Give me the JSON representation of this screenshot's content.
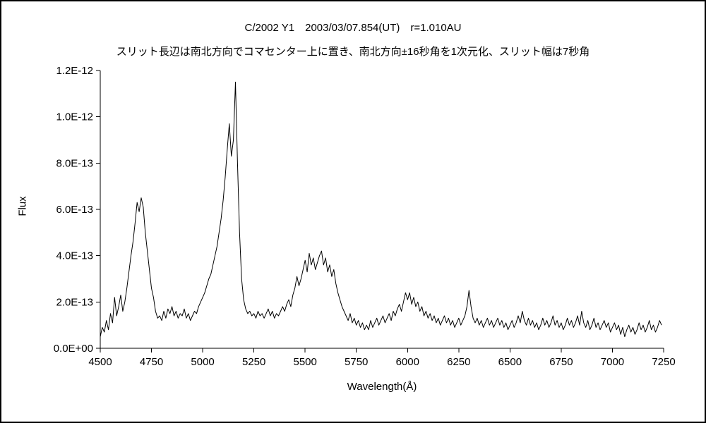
{
  "chart_data": {
    "type": "line",
    "title": "C/2002 Y1　2003/03/07.854(UT)　r=1.010AU",
    "subtitle": "スリット長辺は南北方向でコマセンター上に置き、南北方向±16秒角を1次元化、スリット幅は7秒角",
    "xlabel": "Wavelength(Å)",
    "ylabel": "Flux",
    "grid": false,
    "legend": "none",
    "line_color": "#000000",
    "x_range": [
      4500,
      7250
    ],
    "y_range": [
      0,
      1.2e-12
    ],
    "flux_unit": 1e-13,
    "x_ticks": [
      4500,
      4750,
      5000,
      5250,
      5500,
      5750,
      6000,
      6250,
      6500,
      6750,
      7000,
      7250
    ],
    "y_ticks_e13": [
      0,
      2,
      4,
      6,
      8,
      10,
      12
    ],
    "y_tick_labels": [
      "0.0E+00",
      "2.0E-13",
      "4.0E-13",
      "6.0E-13",
      "8.0E-13",
      "1.0E-12",
      "1.2E-12"
    ],
    "series": [
      {
        "name": "flux",
        "x_start": 4500,
        "x_step": 10,
        "values_e13": [
          0.5,
          0.9,
          0.7,
          1.2,
          0.8,
          1.5,
          1.1,
          2.2,
          1.4,
          1.8,
          2.3,
          1.6,
          2.0,
          2.6,
          3.3,
          4.0,
          4.6,
          5.4,
          6.3,
          5.9,
          6.5,
          6.1,
          5.0,
          4.2,
          3.4,
          2.6,
          2.2,
          1.6,
          1.3,
          1.4,
          1.2,
          1.6,
          1.3,
          1.7,
          1.5,
          1.8,
          1.4,
          1.6,
          1.3,
          1.5,
          1.4,
          1.7,
          1.3,
          1.5,
          1.2,
          1.4,
          1.6,
          1.5,
          1.8,
          2.0,
          2.2,
          2.4,
          2.7,
          3.0,
          3.2,
          3.6,
          4.0,
          4.4,
          5.0,
          5.6,
          6.4,
          7.4,
          8.6,
          9.7,
          8.3,
          9.0,
          11.5,
          8.0,
          5.0,
          3.0,
          2.1,
          1.7,
          1.5,
          1.6,
          1.4,
          1.5,
          1.3,
          1.6,
          1.4,
          1.5,
          1.3,
          1.5,
          1.7,
          1.4,
          1.6,
          1.3,
          1.5,
          1.4,
          1.6,
          1.8,
          1.6,
          1.9,
          2.1,
          1.8,
          2.3,
          2.6,
          3.1,
          2.7,
          3.0,
          3.4,
          3.8,
          3.3,
          4.1,
          3.6,
          3.9,
          3.4,
          3.7,
          4.0,
          4.2,
          3.6,
          3.9,
          3.3,
          3.6,
          3.1,
          3.4,
          2.8,
          2.4,
          2.1,
          1.8,
          1.6,
          1.4,
          1.2,
          1.5,
          1.1,
          1.3,
          1.0,
          1.2,
          0.9,
          1.1,
          0.8,
          1.0,
          0.8,
          1.2,
          0.9,
          1.1,
          1.3,
          1.0,
          1.2,
          1.4,
          1.1,
          1.3,
          1.5,
          1.2,
          1.6,
          1.4,
          1.7,
          1.9,
          1.6,
          2.0,
          2.4,
          2.1,
          2.4,
          1.9,
          2.2,
          1.8,
          2.0,
          1.6,
          1.8,
          1.4,
          1.6,
          1.3,
          1.5,
          1.2,
          1.4,
          1.1,
          1.3,
          1.0,
          1.2,
          1.4,
          1.1,
          1.3,
          1.0,
          1.2,
          0.9,
          1.1,
          1.3,
          1.0,
          1.2,
          1.4,
          1.8,
          2.5,
          1.8,
          1.3,
          1.1,
          1.3,
          1.0,
          1.2,
          0.9,
          1.1,
          1.3,
          1.0,
          1.2,
          0.9,
          1.1,
          1.3,
          1.0,
          1.2,
          0.9,
          1.1,
          0.8,
          1.0,
          1.2,
          0.9,
          1.1,
          1.4,
          1.1,
          1.6,
          1.2,
          1.0,
          1.3,
          1.0,
          1.2,
          0.9,
          1.1,
          0.8,
          1.0,
          1.3,
          1.0,
          1.2,
          0.9,
          1.1,
          1.4,
          1.0,
          1.2,
          0.9,
          1.1,
          0.8,
          1.0,
          1.3,
          1.0,
          1.2,
          0.9,
          1.1,
          1.4,
          1.0,
          1.6,
          1.1,
          0.9,
          1.2,
          0.8,
          1.0,
          1.3,
          0.9,
          1.1,
          0.8,
          1.0,
          1.2,
          0.9,
          1.1,
          0.7,
          0.9,
          1.1,
          0.8,
          1.0,
          0.6,
          0.9,
          0.5,
          0.8,
          1.0,
          0.7,
          0.9,
          0.6,
          0.8,
          1.1,
          0.8,
          1.0,
          0.7,
          0.9,
          1.2,
          0.8,
          1.0,
          0.7,
          0.9,
          1.2,
          1.0
        ]
      }
    ]
  }
}
